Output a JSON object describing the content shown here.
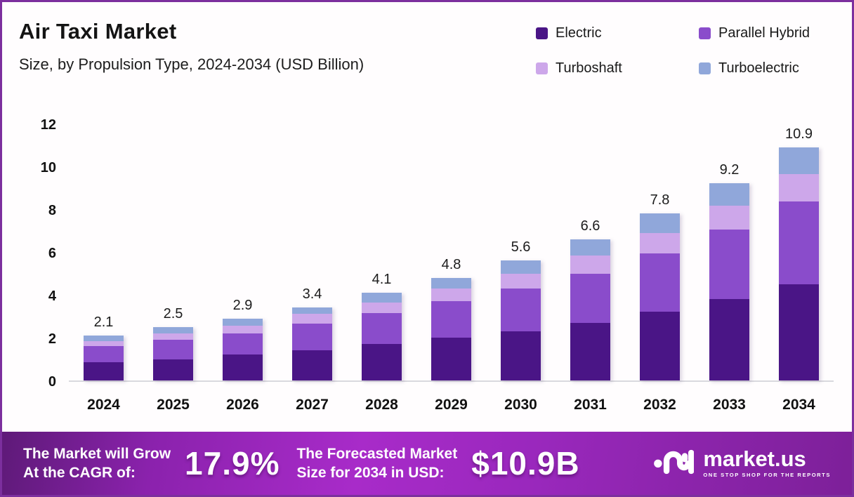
{
  "header": {
    "title": "Air Taxi Market",
    "subtitle": "Size, by Propulsion Type, 2024-2034 (USD Billion)"
  },
  "chart_data": {
    "type": "bar",
    "stacked": true,
    "title": "Air Taxi Market Size, by Propulsion Type, 2024-2034 (USD Billion)",
    "categories": [
      "2024",
      "2025",
      "2026",
      "2027",
      "2028",
      "2029",
      "2030",
      "2031",
      "2032",
      "2033",
      "2034"
    ],
    "series": [
      {
        "name": "Electric",
        "color": "#4a1586",
        "values": [
          0.85,
          1.0,
          1.2,
          1.4,
          1.7,
          2.0,
          2.3,
          2.7,
          3.2,
          3.8,
          4.5
        ]
      },
      {
        "name": "Parallel Hybrid",
        "color": "#8a4ccb",
        "values": [
          0.75,
          0.9,
          1.0,
          1.25,
          1.45,
          1.7,
          2.0,
          2.3,
          2.75,
          3.25,
          3.85
        ]
      },
      {
        "name": "Turboshaft",
        "color": "#cda7ea",
        "values": [
          0.25,
          0.3,
          0.35,
          0.45,
          0.5,
          0.6,
          0.7,
          0.85,
          0.95,
          1.1,
          1.3
        ]
      },
      {
        "name": "Turboelectric",
        "color": "#90a7da",
        "values": [
          0.25,
          0.3,
          0.35,
          0.3,
          0.45,
          0.5,
          0.6,
          0.75,
          0.9,
          1.05,
          1.25
        ]
      }
    ],
    "totals": [
      "2.1",
      "2.5",
      "2.9",
      "3.4",
      "4.1",
      "4.8",
      "5.6",
      "6.6",
      "7.8",
      "9.2",
      "10.9"
    ],
    "y_ticks": [
      0,
      2,
      4,
      6,
      8,
      10,
      12
    ],
    "ylim": [
      0,
      12
    ],
    "xlabel": "",
    "ylabel": "",
    "grid": false,
    "legend_position": "top-right"
  },
  "footer": {
    "cagr_label_line1": "The Market will Grow",
    "cagr_label_line2": "At the CAGR of:",
    "cagr_value": "17.9%",
    "forecast_label_line1": "The Forecasted Market",
    "forecast_label_line2": "Size for 2034 in USD:",
    "forecast_value": "$10.9B",
    "brand_name": "market.us",
    "brand_tagline": "ONE STOP SHOP FOR THE REPORTS"
  }
}
